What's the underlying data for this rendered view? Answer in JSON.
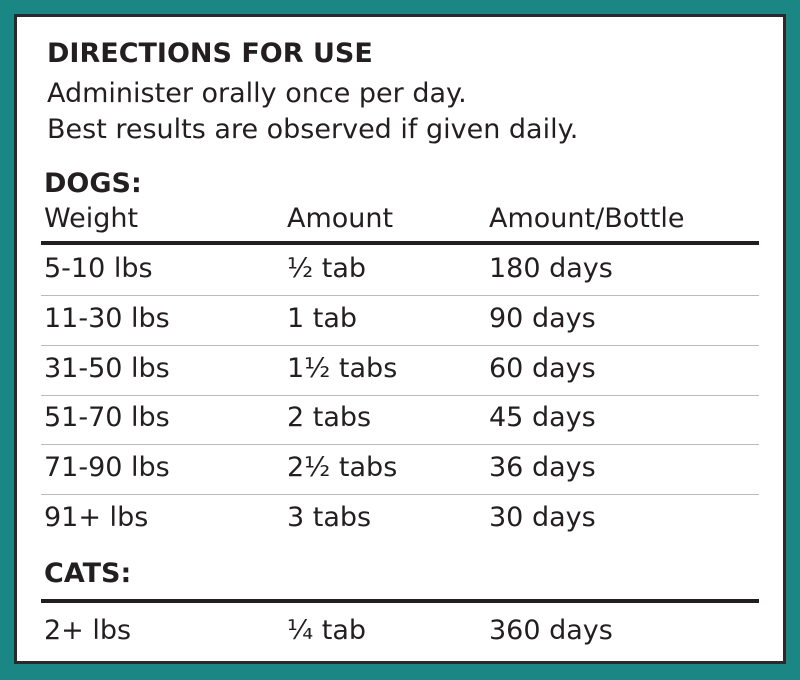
{
  "header": {
    "title": "DIRECTIONS FOR USE",
    "lines": [
      "Administer orally once per day.",
      "Best results are observed if given daily."
    ]
  },
  "dogs": {
    "label": "DOGS:",
    "columns": [
      "Weight",
      "Amount",
      "Amount/Bottle"
    ],
    "rows": [
      [
        "5-10 lbs",
        "½ tab",
        "180 days"
      ],
      [
        "11-30 lbs",
        "1 tab",
        "90 days"
      ],
      [
        "31-50 lbs",
        "1½ tabs",
        "60 days"
      ],
      [
        "51-70 lbs",
        "2 tabs",
        "45 days"
      ],
      [
        "71-90 lbs",
        "2½ tabs",
        "36 days"
      ],
      [
        "91+ lbs",
        "3 tabs",
        "30 days"
      ]
    ]
  },
  "cats": {
    "label": "CATS:",
    "rows": [
      [
        "2+ lbs",
        "¼ tab",
        "360 days"
      ]
    ]
  }
}
